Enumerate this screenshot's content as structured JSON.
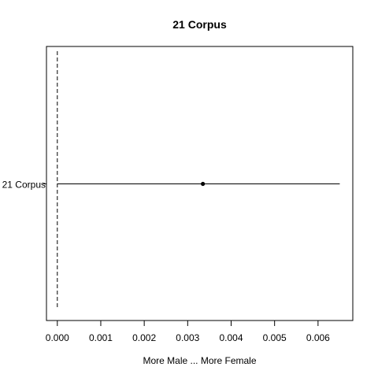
{
  "chart_data": {
    "type": "forest",
    "title": "21 Corpus",
    "xlabel": "More Male ... More Female",
    "ylabel": "",
    "xlim": [
      -0.00025,
      0.0068
    ],
    "xticks": [
      0.0,
      0.001,
      0.002,
      0.003,
      0.004,
      0.005,
      0.006
    ],
    "xtick_labels": [
      "0.000",
      "0.001",
      "0.002",
      "0.003",
      "0.004",
      "0.005",
      "0.006"
    ],
    "reference_line": 0,
    "grid": false,
    "rows": [
      {
        "label": "21 Corpus",
        "estimate": 0.00335,
        "lower": 0.0,
        "upper": 0.0065
      }
    ]
  }
}
